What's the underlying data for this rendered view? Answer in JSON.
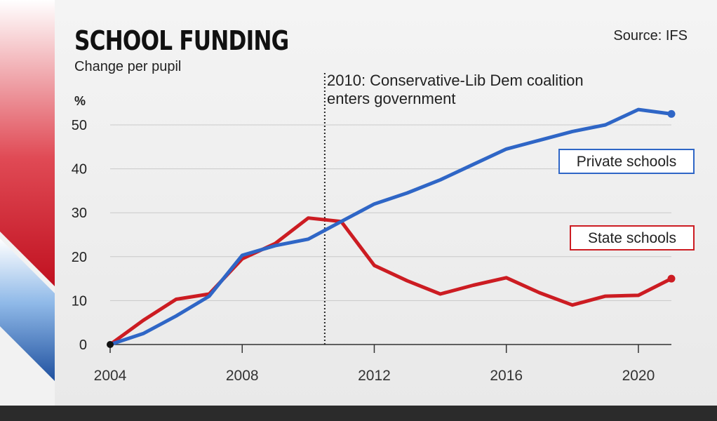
{
  "header": {
    "title": "SCHOOL FUNDING",
    "subtitle": "Change per pupil",
    "source": "Source: IFS"
  },
  "colors": {
    "private": "#2f66c6",
    "state": "#cc1c22",
    "grid": "#c9c9c9",
    "axis": "#333333"
  },
  "chart_data": {
    "type": "line",
    "title": "SCHOOL FUNDING",
    "subtitle": "Change per pupil",
    "ylabel": "%",
    "xlabel": "",
    "xlim": [
      2004,
      2021
    ],
    "ylim": [
      0,
      55
    ],
    "xticks": [
      2004,
      2008,
      2012,
      2016,
      2020
    ],
    "yticks": [
      0,
      10,
      20,
      30,
      40,
      50
    ],
    "grid": true,
    "series": [
      {
        "name": "Private schools",
        "color": "#2f66c6",
        "x": [
          2004,
          2005,
          2006,
          2007,
          2008,
          2009,
          2010,
          2011,
          2012,
          2013,
          2014,
          2015,
          2016,
          2017,
          2018,
          2019,
          2020,
          2021
        ],
        "y": [
          0,
          2.5,
          6.5,
          11,
          20.3,
          22.5,
          24,
          28,
          32,
          34.5,
          37.5,
          41,
          44.5,
          46.5,
          48.5,
          50,
          53.5,
          52.5
        ]
      },
      {
        "name": "State schools",
        "color": "#cc1c22",
        "x": [
          2004,
          2005,
          2006,
          2007,
          2008,
          2009,
          2010,
          2011,
          2012,
          2013,
          2014,
          2015,
          2016,
          2017,
          2018,
          2019,
          2020,
          2021
        ],
        "y": [
          0,
          5.5,
          10.3,
          11.5,
          19.5,
          23,
          28.8,
          28,
          18,
          14.5,
          11.5,
          13.5,
          15.2,
          11.8,
          9,
          11,
          11.2,
          15
        ]
      }
    ],
    "annotations": [
      {
        "text": "2010: Conservative-Lib Dem coalition enters government",
        "line1": "2010: Conservative-Lib Dem coalition",
        "line2": "enters government",
        "x": 2010.5
      }
    ]
  }
}
